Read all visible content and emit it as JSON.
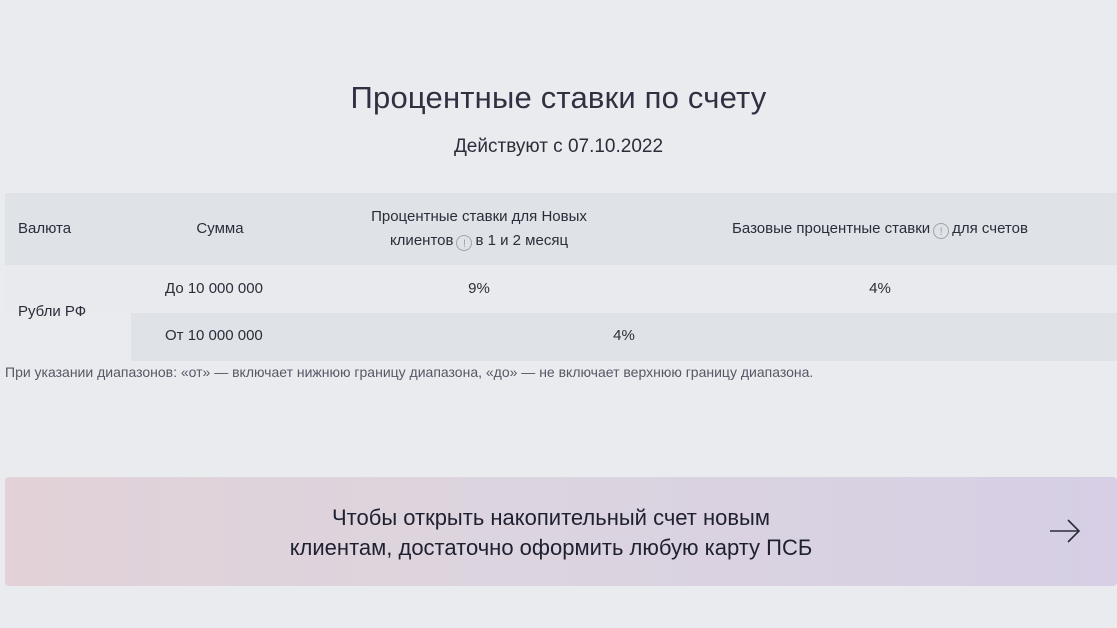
{
  "header": {
    "title": "Процентные ставки по счету",
    "subtitle": "Действуют с 07.10.2022"
  },
  "table": {
    "columns": {
      "currency": "Валюта",
      "sum": "Сумма",
      "new_rates_line1": "Процентные ставки для Новых",
      "new_rates_line2_a": "клиентов",
      "new_rates_line2_b": "в 1 и 2 месяц",
      "base_rates_a": "Базовые процентные ставки",
      "base_rates_b": "для счетов"
    },
    "info_icon_glyph": "!",
    "rows": [
      {
        "currency": "Рубли РФ",
        "sum": "До 10 000 000",
        "new_rate": "9%",
        "base_rate": "4%"
      },
      {
        "sum": "От 10 000 000",
        "rate": "4%"
      }
    ]
  },
  "note": "При указании диапазонов: «от» — включает нижнюю границу диапазона, «до» — не включает верхнюю границу диапазона.",
  "banner": {
    "text_line1": "Чтобы открыть накопительный счет новым",
    "text_line2": "клиентам, достаточно оформить любую карту ПСБ",
    "arrow_icon": "arrow-right-icon",
    "gradient_from": "#e2d2d8",
    "gradient_to": "#d6cfe5"
  }
}
